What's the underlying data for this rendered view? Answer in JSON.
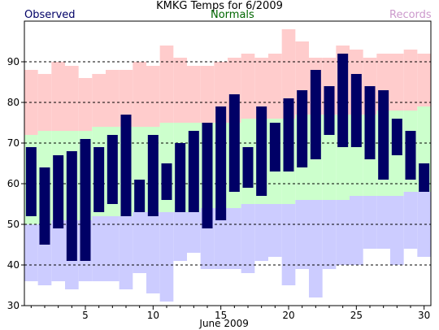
{
  "chart_data": {
    "type": "bar",
    "title": "KMKG Temps for 6/2009",
    "xlabel": "June 2009",
    "ylabel": "",
    "legend": {
      "observed": "Observed",
      "normals": "Normals",
      "records": "Records",
      "placement": "top"
    },
    "ylim": [
      30,
      100
    ],
    "yticks": [
      30,
      40,
      50,
      60,
      70,
      80,
      90
    ],
    "xlim": [
      0.5,
      30.5
    ],
    "xticks": [
      5,
      10,
      15,
      20,
      25,
      30
    ],
    "grid": true,
    "days": [
      1,
      2,
      3,
      4,
      5,
      6,
      7,
      8,
      9,
      10,
      11,
      12,
      13,
      14,
      15,
      16,
      17,
      18,
      19,
      20,
      21,
      22,
      23,
      24,
      25,
      26,
      27,
      28,
      29,
      30
    ],
    "series": [
      {
        "name": "Observed",
        "color": "#000066",
        "high": [
          69,
          64,
          67,
          68,
          71,
          69,
          72,
          77,
          61,
          72,
          65,
          70,
          73,
          75,
          79,
          82,
          69,
          79,
          75,
          81,
          83,
          88,
          84,
          92,
          87,
          84,
          83,
          76,
          73,
          65
        ],
        "low": [
          52,
          45,
          49,
          41,
          41,
          53,
          55,
          52,
          53,
          52,
          56,
          53,
          53,
          49,
          51,
          58,
          59,
          57,
          63,
          63,
          64,
          66,
          72,
          69,
          69,
          66,
          61,
          67,
          61,
          58
        ]
      },
      {
        "name": "Normals",
        "color": "#ccffcc",
        "high": [
          72,
          73,
          73,
          73,
          73,
          74,
          74,
          74,
          74,
          74,
          75,
          75,
          75,
          75,
          75,
          75,
          76,
          76,
          76,
          76,
          77,
          77,
          77,
          77,
          77,
          77,
          78,
          78,
          78,
          79
        ],
        "low": [
          50,
          50,
          51,
          51,
          51,
          52,
          52,
          52,
          53,
          53,
          53,
          53,
          53,
          54,
          54,
          54,
          55,
          55,
          55,
          55,
          56,
          56,
          56,
          56,
          57,
          57,
          57,
          57,
          58,
          58
        ]
      },
      {
        "name": "Records",
        "color_high": "#ffcccc",
        "color_low": "#ccccff",
        "high": [
          88,
          87,
          90,
          89,
          86,
          87,
          88,
          88,
          90,
          89,
          94,
          91,
          89,
          89,
          90,
          91,
          92,
          91,
          92,
          98,
          95,
          91,
          91,
          94,
          93,
          91,
          92,
          92,
          93,
          92
        ],
        "low": [
          36,
          35,
          36,
          34,
          36,
          36,
          36,
          34,
          38,
          33,
          31,
          41,
          43,
          39,
          39,
          39,
          38,
          41,
          42,
          35,
          39,
          32,
          39,
          40,
          40,
          44,
          44,
          40,
          44,
          42
        ]
      }
    ],
    "colors": {
      "observed_text": "#000066",
      "normals_text": "#006600",
      "records_text": "#cc99cc",
      "record_high_band": "#ffcccc",
      "normal_band": "#ccffcc",
      "record_low_band": "#ccccff",
      "observed_bar": "#000066"
    }
  }
}
